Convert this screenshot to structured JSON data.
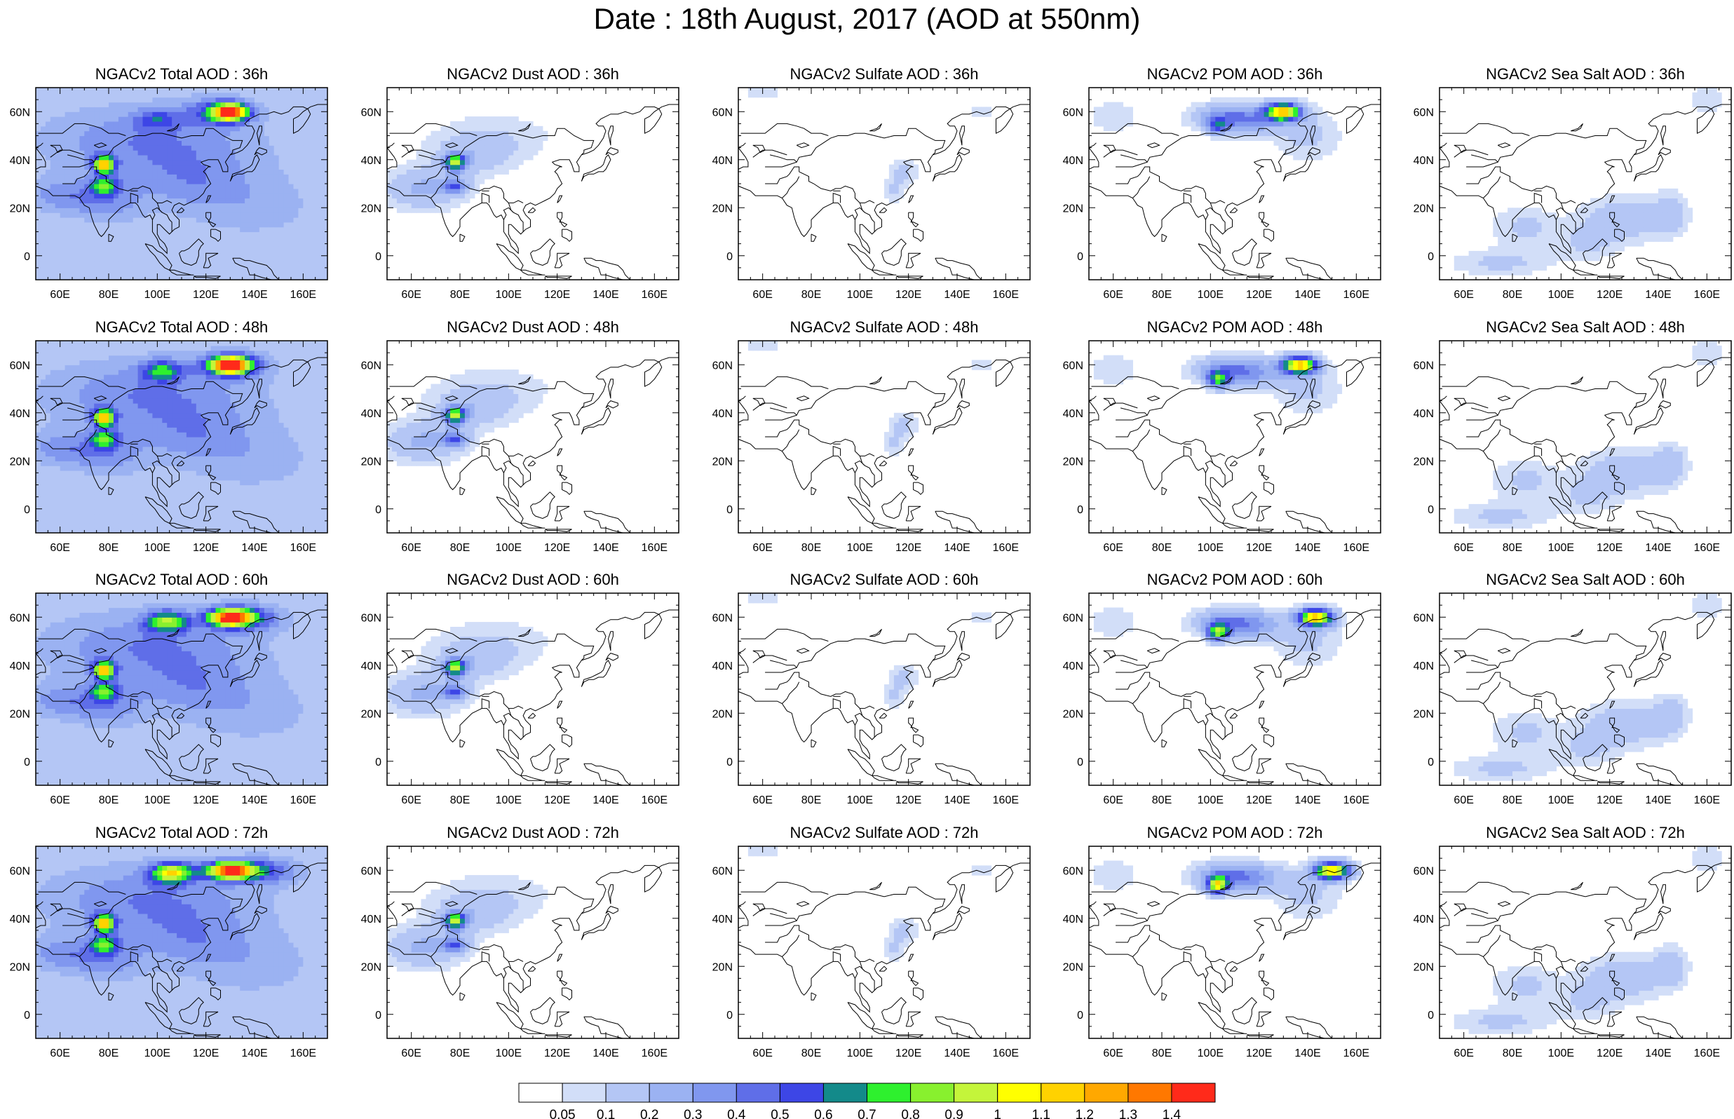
{
  "figure": {
    "title": "Date : 18th August, 2017 (AOD at 550nm)"
  },
  "panels": [
    {
      "title": "NGACv2 Total AOD : 36h",
      "species": "total",
      "hour": 36
    },
    {
      "title": "NGACv2 Dust AOD : 36h",
      "species": "dust",
      "hour": 36
    },
    {
      "title": "NGACv2 Sulfate AOD : 36h",
      "species": "sulfate",
      "hour": 36
    },
    {
      "title": "NGACv2 POM AOD : 36h",
      "species": "pom",
      "hour": 36
    },
    {
      "title": "NGACv2 Sea Salt AOD : 36h",
      "species": "seasalt",
      "hour": 36
    },
    {
      "title": "NGACv2 Total AOD : 48h",
      "species": "total",
      "hour": 48
    },
    {
      "title": "NGACv2 Dust AOD : 48h",
      "species": "dust",
      "hour": 48
    },
    {
      "title": "NGACv2 Sulfate AOD : 48h",
      "species": "sulfate",
      "hour": 48
    },
    {
      "title": "NGACv2 POM AOD : 48h",
      "species": "pom",
      "hour": 48
    },
    {
      "title": "NGACv2 Sea Salt AOD : 48h",
      "species": "seasalt",
      "hour": 48
    },
    {
      "title": "NGACv2 Total AOD : 60h",
      "species": "total",
      "hour": 60
    },
    {
      "title": "NGACv2 Dust AOD : 60h",
      "species": "dust",
      "hour": 60
    },
    {
      "title": "NGACv2 Sulfate AOD : 60h",
      "species": "sulfate",
      "hour": 60
    },
    {
      "title": "NGACv2 POM AOD : 60h",
      "species": "pom",
      "hour": 60
    },
    {
      "title": "NGACv2 Sea Salt AOD : 60h",
      "species": "seasalt",
      "hour": 60
    },
    {
      "title": "NGACv2 Total AOD : 72h",
      "species": "total",
      "hour": 72
    },
    {
      "title": "NGACv2 Dust AOD : 72h",
      "species": "dust",
      "hour": 72
    },
    {
      "title": "NGACv2 Sulfate AOD : 72h",
      "species": "sulfate",
      "hour": 72
    },
    {
      "title": "NGACv2 POM AOD : 72h",
      "species": "pom",
      "hour": 72
    },
    {
      "title": "NGACv2 Sea Salt  AOD : 72h",
      "species": "seasalt",
      "hour": 72
    }
  ],
  "axes": {
    "lon_range": [
      50,
      170
    ],
    "lat_range": [
      -10,
      70
    ],
    "lon_ticks": [
      "60E",
      "80E",
      "100E",
      "120E",
      "140E",
      "160E"
    ],
    "lon_tick_values": [
      60,
      80,
      100,
      120,
      140,
      160
    ],
    "lat_ticks": [
      "60N",
      "40N",
      "20N",
      "0"
    ],
    "lat_tick_values": [
      60,
      40,
      20,
      0
    ]
  },
  "colorbar": {
    "labels": [
      "0.05",
      "0.1",
      "0.2",
      "0.3",
      "0.4",
      "0.5",
      "0.6",
      "0.7",
      "0.8",
      "0.9",
      "1",
      "1.1",
      "1.2",
      "1.3",
      "1.4"
    ],
    "colors": [
      "#ffffff",
      "#d2def8",
      "#b4c6f5",
      "#9bb2f2",
      "#8097ef",
      "#5f6ee8",
      "#3d46e6",
      "#138a8a",
      "#2ef02e",
      "#88f02e",
      "#c4f53a",
      "#ffff00",
      "#ffd200",
      "#ffa800",
      "#ff7800",
      "#ff2a1a"
    ]
  },
  "colors": {
    "coastline": "#000000",
    "frame": "#000000"
  }
}
